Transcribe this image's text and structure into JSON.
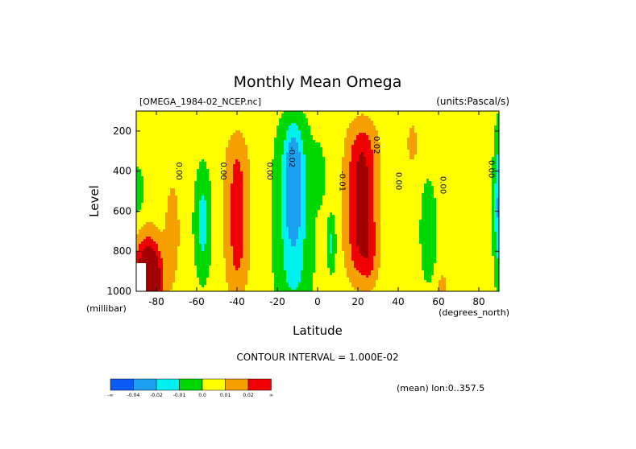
{
  "chart_data": {
    "type": "heatmap",
    "title": "Monthly Mean Omega",
    "subtitle_left": "[OMEGA_1984-02_NCEP.nc]",
    "subtitle_right": "(units:Pascal/s)",
    "xlabel": "Latitude",
    "ylabel": "Level",
    "x_units": "(degrees_north)",
    "y_units": "(millibar)",
    "xlim": [
      -90,
      90
    ],
    "ylim": [
      1000,
      100
    ],
    "y_inverted": true,
    "xticks": [
      "-80",
      "-60",
      "-40",
      "-20",
      "0",
      "20",
      "40",
      "60",
      "80"
    ],
    "xtick_values": [
      -80,
      -60,
      -40,
      -20,
      0,
      20,
      40,
      60,
      80
    ],
    "yticks": [
      "200",
      "400",
      "600",
      "800",
      "1000"
    ],
    "ytick_values": [
      200,
      400,
      600,
      800,
      1000
    ],
    "contour_interval_text": "CONTOUR INTERVAL = 1.000E-02",
    "mean_note": "(mean) lon:0..357.5",
    "contour_labels": [
      {
        "text": "0.00",
        "lat": -70,
        "level": 400
      },
      {
        "text": "0.00",
        "lat": -48,
        "level": 400
      },
      {
        "text": "0.00",
        "lat": -25,
        "level": 400
      },
      {
        "text": "-0.02",
        "lat": -14,
        "level": 330
      },
      {
        "text": "-0.01",
        "lat": 11,
        "level": 450
      },
      {
        "text": "0.02",
        "lat": 28,
        "level": 270
      },
      {
        "text": "0.00",
        "lat": 39,
        "level": 450
      },
      {
        "text": "0.00",
        "lat": 61,
        "level": 470
      },
      {
        "text": "0.00",
        "lat": 85,
        "level": 390
      }
    ],
    "colorbar": {
      "levels": [
        "-∞",
        "-0.04",
        "-0.02",
        "-0.01",
        "0.0",
        "0.01",
        "0.02",
        "∞"
      ],
      "colors": [
        "#0a5cf5",
        "#1ea0f0",
        "#00f0f0",
        "#00d800",
        "#ffff00",
        "#f5a000",
        "#f00000"
      ]
    },
    "palette": {
      "lt_-0.02": "#1ea0f0",
      "-0.02_-0.01": "#00f0f0",
      "-0.01_0": "#00d800",
      "0_0.01": "#ffff00",
      "0.01_0.02": "#f5a000",
      "0.02_0.03": "#f00000",
      "gt_0.03": "#a00000"
    },
    "features": [
      {
        "sign": 1,
        "amp": 0.0106,
        "lat": -72,
        "lat_width": 4.0,
        "level": 700,
        "level_width": 280,
        "level_power": 2
      },
      {
        "sign": 1,
        "amp": 0.055,
        "lat": -84,
        "lat_width": 6.5,
        "level": 940,
        "level_width": 190,
        "level_power": 2
      },
      {
        "sign": -1,
        "amp": 0.012,
        "lat": -89,
        "lat_width": 2.5,
        "level": 500,
        "level_width": 120,
        "level_power": 2
      },
      {
        "sign": -1,
        "amp": 0.0185,
        "lat": -57,
        "lat_width": 4.0,
        "level": 660,
        "level_width": 260,
        "level_power": 2
      },
      {
        "sign": 1,
        "amp": 0.0198,
        "lat": -40,
        "lat_width": 5.8,
        "level": 620,
        "level_width": 400,
        "level_power": 4
      },
      {
        "sign": -1,
        "amp": 0.02,
        "lat": -12,
        "lat_width": 8.5,
        "level": 620,
        "level_width": 480,
        "level_power": 4
      },
      {
        "sign": -1,
        "amp": 0.029,
        "lat": -12,
        "lat_width": 3.8,
        "level": 460,
        "level_width": 230,
        "level_power": 2
      },
      {
        "sign": -1,
        "amp": 0.008,
        "lat": 1,
        "lat_width": 3.0,
        "level": 420,
        "level_width": 150,
        "level_power": 2
      },
      {
        "sign": -1,
        "amp": 0.017,
        "lat": 7,
        "lat_width": 2.0,
        "level": 760,
        "level_width": 140,
        "level_power": 2
      },
      {
        "sign": 1,
        "amp": 0.0305,
        "lat": 22,
        "lat_width": 7.6,
        "level": 560,
        "level_width": 390,
        "level_power": 4
      },
      {
        "sign": 1,
        "amp": 0.006,
        "lat": 26,
        "lat_width": 3.0,
        "level": 860,
        "level_width": 120,
        "level_power": 2
      },
      {
        "sign": -1,
        "amp": 0.0135,
        "lat": 55,
        "lat_width": 3.8,
        "level": 700,
        "level_width": 240,
        "level_power": 2
      },
      {
        "sign": 1,
        "amp": 0.009,
        "lat": 47,
        "lat_width": 3.2,
        "level": 260,
        "level_width": 130,
        "level_power": 2
      },
      {
        "sign": 1,
        "amp": 0.0105,
        "lat": 62,
        "lat_width": 2.8,
        "level": 980,
        "level_width": 80,
        "level_power": 2
      },
      {
        "sign": -1,
        "amp": 0.026,
        "lat": 90,
        "lat_width": 2.6,
        "level": 580,
        "level_width": 350,
        "level_power": 2
      }
    ]
  }
}
